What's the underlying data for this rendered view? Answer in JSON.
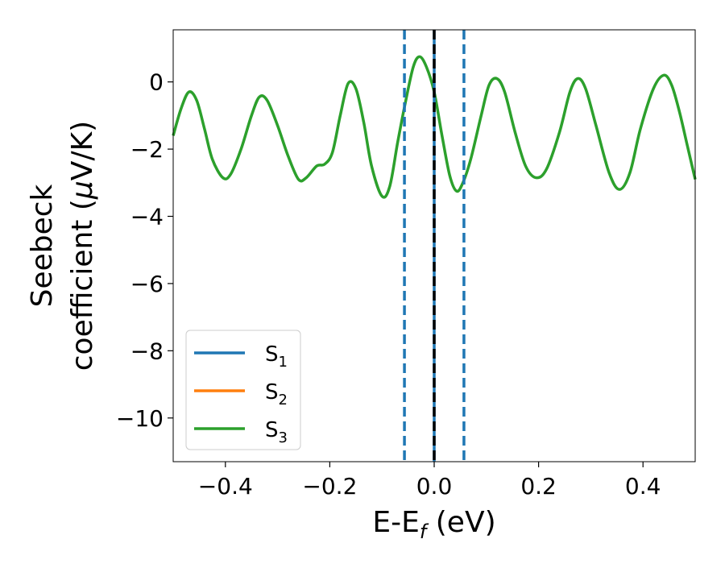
{
  "chart_data": {
    "type": "line",
    "xlabel": "E-E",
    "xlabel_sub": "f",
    "xlabel_unit": " (eV)",
    "ylabel_line1": "Seebeck",
    "ylabel_line2": "coefficient  (",
    "ylabel_mu": "μ",
    "ylabel_unit": "V/K)",
    "xlim": [
      -0.5,
      0.5
    ],
    "ylim": [
      -11.3,
      1.55
    ],
    "x_ticks": [
      -0.4,
      -0.2,
      0.0,
      0.2,
      0.4
    ],
    "x_tick_labels": [
      "−0.4",
      "−0.2",
      "0.0",
      "0.2",
      "0.4"
    ],
    "y_ticks": [
      0,
      -2,
      -4,
      -6,
      -8,
      -10
    ],
    "y_tick_labels": [
      "0",
      "−2",
      "−4",
      "−6",
      "−8",
      "−10"
    ],
    "grid": false,
    "legend_position": "lower-left",
    "series": [
      {
        "name": "S",
        "sub": "1",
        "color": "#1f77b4"
      },
      {
        "name": "S",
        "sub": "2",
        "color": "#ff7f0e"
      },
      {
        "name": "S",
        "sub": "3",
        "color": "#2ca02c",
        "points": [
          [
            -0.5,
            -1.6
          ],
          [
            -0.485,
            -0.8
          ],
          [
            -0.47,
            -0.3
          ],
          [
            -0.455,
            -0.55
          ],
          [
            -0.44,
            -1.4
          ],
          [
            -0.425,
            -2.3
          ],
          [
            -0.405,
            -2.85
          ],
          [
            -0.39,
            -2.75
          ],
          [
            -0.37,
            -2.0
          ],
          [
            -0.35,
            -1.0
          ],
          [
            -0.335,
            -0.45
          ],
          [
            -0.32,
            -0.55
          ],
          [
            -0.3,
            -1.3
          ],
          [
            -0.28,
            -2.2
          ],
          [
            -0.26,
            -2.9
          ],
          [
            -0.245,
            -2.85
          ],
          [
            -0.225,
            -2.5
          ],
          [
            -0.21,
            -2.45
          ],
          [
            -0.195,
            -2.1
          ],
          [
            -0.18,
            -1.0
          ],
          [
            -0.165,
            -0.05
          ],
          [
            -0.15,
            -0.2
          ],
          [
            -0.135,
            -1.2
          ],
          [
            -0.12,
            -2.5
          ],
          [
            -0.1,
            -3.4
          ],
          [
            -0.085,
            -3.1
          ],
          [
            -0.07,
            -1.8
          ],
          [
            -0.055,
            -0.6
          ],
          [
            -0.04,
            0.45
          ],
          [
            -0.028,
            0.75
          ],
          [
            -0.015,
            0.45
          ],
          [
            0.0,
            -0.3
          ],
          [
            0.015,
            -1.6
          ],
          [
            0.03,
            -2.8
          ],
          [
            0.043,
            -3.25
          ],
          [
            0.055,
            -3.0
          ],
          [
            0.07,
            -2.3
          ],
          [
            0.09,
            -1.0
          ],
          [
            0.105,
            -0.1
          ],
          [
            0.12,
            0.1
          ],
          [
            0.135,
            -0.3
          ],
          [
            0.155,
            -1.5
          ],
          [
            0.175,
            -2.5
          ],
          [
            0.195,
            -2.85
          ],
          [
            0.215,
            -2.6
          ],
          [
            0.24,
            -1.5
          ],
          [
            0.26,
            -0.3
          ],
          [
            0.275,
            0.1
          ],
          [
            0.29,
            -0.2
          ],
          [
            0.31,
            -1.3
          ],
          [
            0.335,
            -2.7
          ],
          [
            0.355,
            -3.2
          ],
          [
            0.375,
            -2.7
          ],
          [
            0.395,
            -1.4
          ],
          [
            0.42,
            -0.2
          ],
          [
            0.44,
            0.2
          ],
          [
            0.455,
            -0.1
          ],
          [
            0.47,
            -0.9
          ],
          [
            0.485,
            -1.9
          ],
          [
            0.5,
            -2.9
          ]
        ]
      }
    ],
    "vertical_lines": [
      {
        "x": -0.057,
        "style": "dashed",
        "color": "#1f77b4"
      },
      {
        "x": 0.057,
        "style": "dashed",
        "color": "#1f77b4"
      },
      {
        "x": 0.0,
        "style": "solid",
        "color": "#1f77b4"
      },
      {
        "x": 0.0,
        "style": "dashed",
        "color": "#000000"
      }
    ]
  }
}
